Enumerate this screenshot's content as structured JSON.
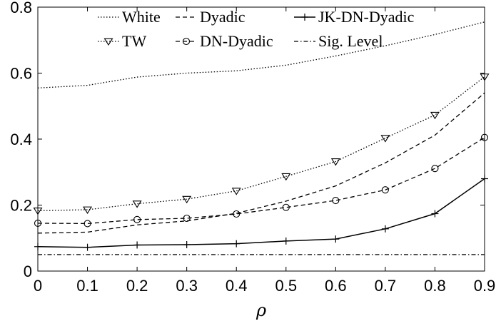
{
  "chart_data": {
    "type": "line",
    "x": [
      0,
      0.1,
      0.2,
      0.3,
      0.4,
      0.5,
      0.6,
      0.7,
      0.8,
      0.9
    ],
    "xlabel": "ρ",
    "ylabel": "",
    "title": "",
    "xlim": [
      0,
      0.9
    ],
    "ylim": [
      0,
      0.8
    ],
    "xticks": [
      "0",
      "0.1",
      "0.2",
      "0.3",
      "0.4",
      "0.5",
      "0.6",
      "0.7",
      "0.8",
      "0.9"
    ],
    "yticks": [
      "0",
      "0.2",
      "0.4",
      "0.6",
      "0.8"
    ],
    "grid": false,
    "legend_position": "top",
    "series": [
      {
        "name": "White",
        "style": "dotted",
        "marker": "none",
        "values": [
          0.555,
          0.563,
          0.588,
          0.6,
          0.607,
          0.624,
          0.652,
          0.683,
          0.717,
          0.755
        ]
      },
      {
        "name": "Dyadic",
        "style": "dashed",
        "marker": "none",
        "values": [
          0.115,
          0.118,
          0.14,
          0.152,
          0.175,
          0.212,
          0.258,
          0.328,
          0.412,
          0.54
        ]
      },
      {
        "name": "JK-DN-Dyadic",
        "style": "solid",
        "marker": "plus",
        "values": [
          0.074,
          0.072,
          0.079,
          0.08,
          0.083,
          0.091,
          0.097,
          0.128,
          0.174,
          0.28
        ]
      },
      {
        "name": "TW",
        "style": "dotted",
        "marker": "triangle-down",
        "values": [
          0.183,
          0.186,
          0.204,
          0.218,
          0.243,
          0.287,
          0.332,
          0.403,
          0.473,
          0.589
        ]
      },
      {
        "name": "DN-Dyadic",
        "style": "dashed",
        "marker": "circle",
        "values": [
          0.145,
          0.144,
          0.156,
          0.16,
          0.173,
          0.193,
          0.214,
          0.246,
          0.311,
          0.405
        ]
      },
      {
        "name": "Sig. Level",
        "style": "dashdot",
        "marker": "none",
        "values": [
          0.05,
          0.05,
          0.05,
          0.05,
          0.05,
          0.05,
          0.05,
          0.05,
          0.05,
          0.05
        ]
      }
    ],
    "legend_order": [
      "White",
      "Dyadic",
      "JK-DN-Dyadic",
      "TW",
      "DN-Dyadic",
      "Sig. Level"
    ]
  }
}
